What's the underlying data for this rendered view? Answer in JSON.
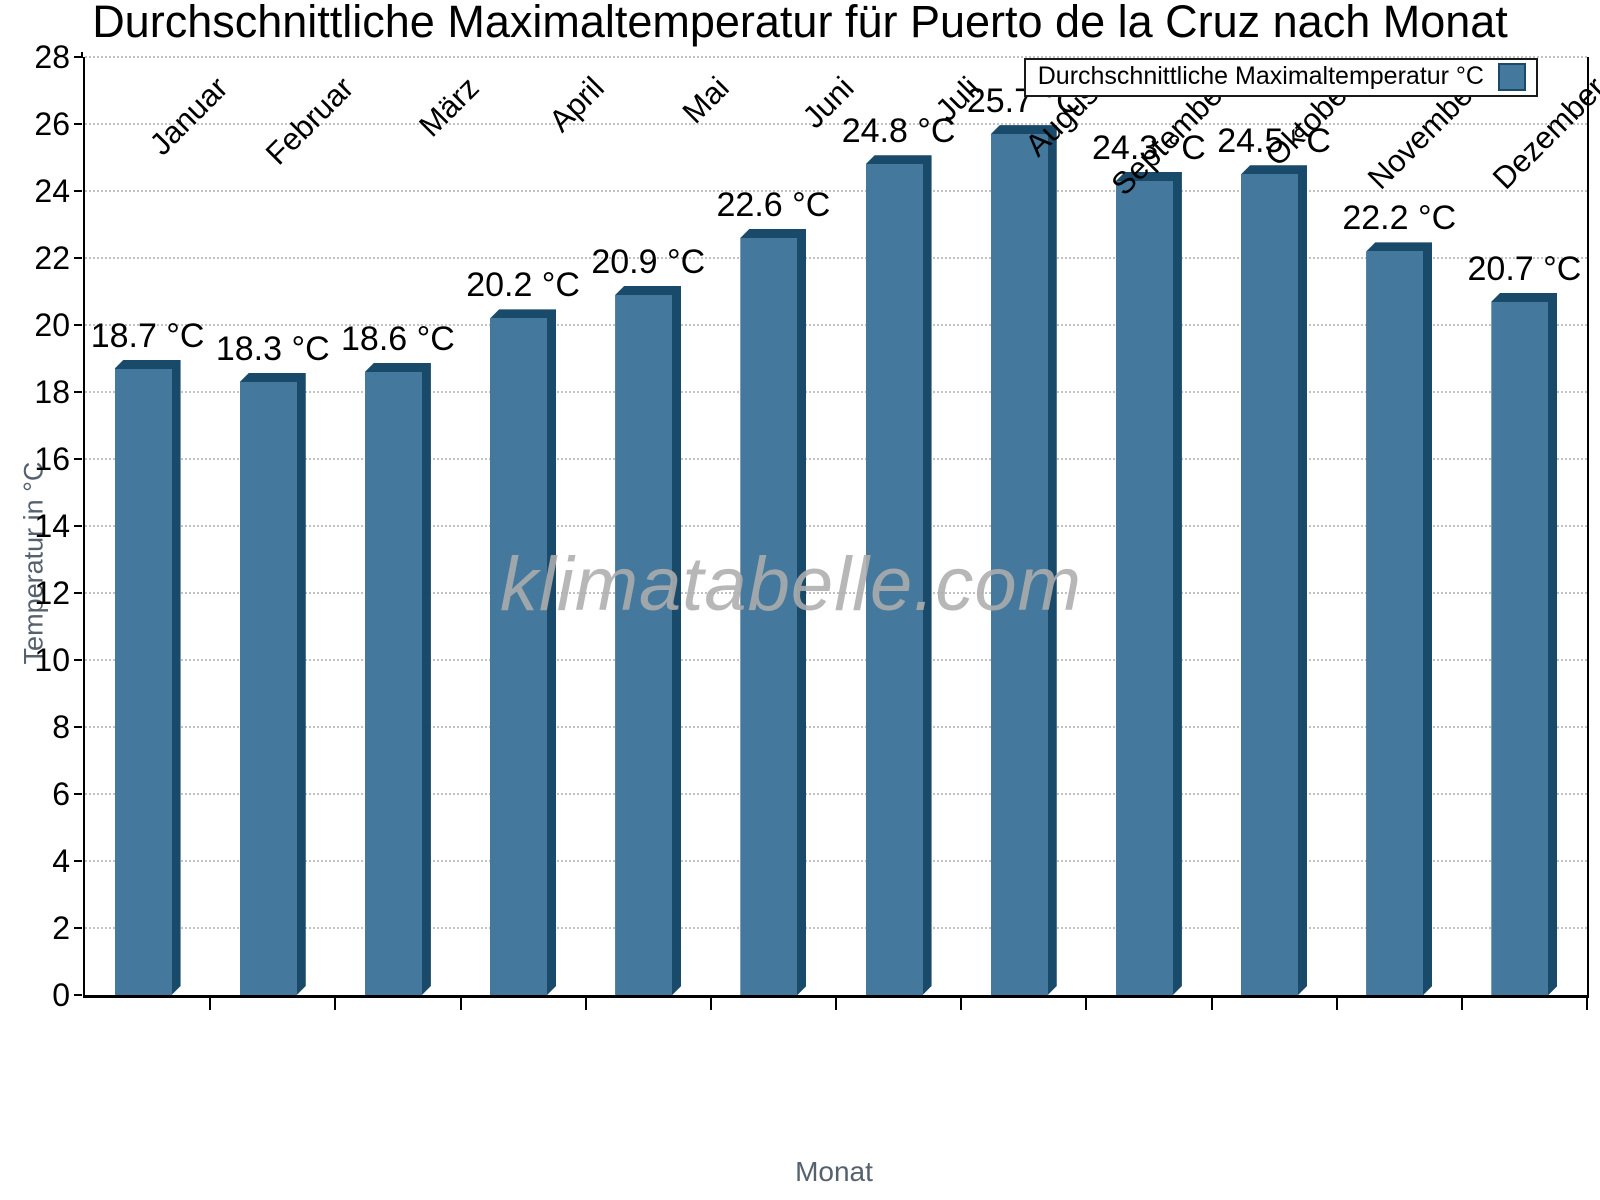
{
  "title": "Durchschnittliche Maximaltemperatur für Puerto de la Cruz nach Monat",
  "watermark": "klimatabelle.com",
  "legend": {
    "label": "Durchschnittliche Maximaltemperatur °C"
  },
  "y_axis": {
    "title": "Temperatur in °C"
  },
  "x_axis": {
    "title": "Monat"
  },
  "colors": {
    "bar_face": "#44789C",
    "bar_edge": "#1A4A69",
    "grid": "#c2c2c2",
    "axis_title_text": "#55616d"
  },
  "chart_data": {
    "type": "bar",
    "title": "Durchschnittliche Maximaltemperatur für Puerto de la Cruz nach Monat",
    "categories": [
      "Januar",
      "Februar",
      "März",
      "April",
      "Mai",
      "Juni",
      "Juli",
      "August",
      "September",
      "Oktober",
      "November",
      "Dezember"
    ],
    "series": [
      {
        "name": "Durchschnittliche Maximaltemperatur °C",
        "values": [
          18.7,
          18.3,
          18.6,
          20.2,
          20.9,
          22.6,
          24.8,
          25.7,
          24.3,
          24.5,
          22.2,
          20.7
        ]
      }
    ],
    "value_labels": [
      "18.7 °C",
      "18.3 °C",
      "18.6 °C",
      "20.2 °C",
      "20.9 °C",
      "22.6 °C",
      "24.8 °C",
      "25.7 °C",
      "24.3 °C",
      "24.5 °C",
      "22.2 °C",
      "20.7 °C"
    ],
    "xlabel": "Monat",
    "ylabel": "Temperatur in °C",
    "ylim": [
      0,
      28
    ],
    "ytick_step": 2,
    "y_tick_labels": [
      "0",
      "2",
      "4",
      "6",
      "8",
      "10",
      "12",
      "14",
      "16",
      "18",
      "20",
      "22",
      "24",
      "26",
      "28"
    ],
    "grid": "horizontal-dotted",
    "legend_position": "top-right",
    "bar_style": "pseudo-3d-extruded"
  }
}
